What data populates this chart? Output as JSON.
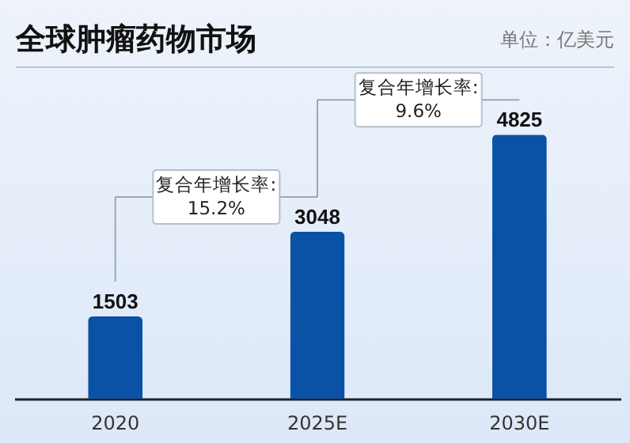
{
  "chart_data": {
    "type": "bar",
    "title": "全球肿瘤药物市场",
    "ylabel": "单位：亿美元",
    "categories": [
      "2020",
      "2025E",
      "2030E"
    ],
    "values": [
      1503,
      3048,
      4825
    ],
    "color": "#0a52a5",
    "data_labels": true,
    "annotations": [
      "复合年增长率:\n15.2%",
      "复合年增长率:\n9.6%"
    ]
  }
}
